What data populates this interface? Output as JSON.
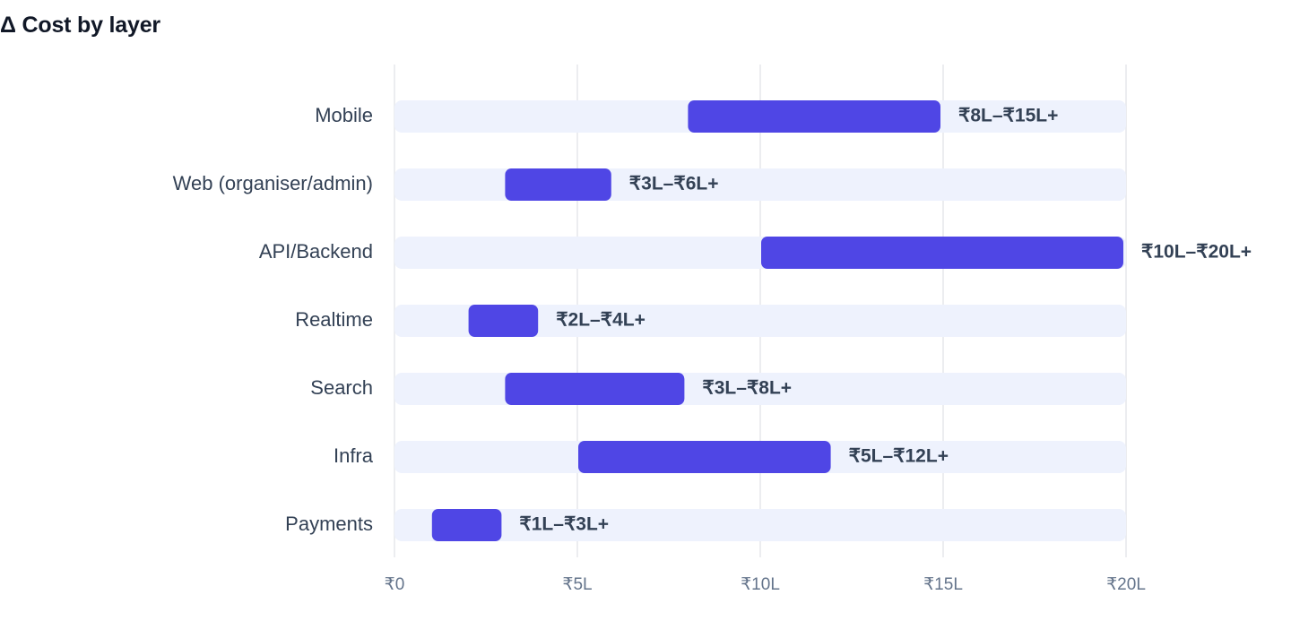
{
  "title": "Δ Cost by layer",
  "chart_data": {
    "type": "bar",
    "orientation": "horizontal",
    "subtype": "range",
    "title": "Δ Cost by layer",
    "categories": [
      "Mobile",
      "Web (organiser/admin)",
      "API/Backend",
      "Realtime",
      "Search",
      "Infra",
      "Payments"
    ],
    "ranges": [
      [
        8,
        15
      ],
      [
        3,
        6
      ],
      [
        10,
        20
      ],
      [
        2,
        4
      ],
      [
        3,
        8
      ],
      [
        5,
        12
      ],
      [
        1,
        3
      ]
    ],
    "range_labels": [
      "₹8L–₹15L+",
      "₹3L–₹6L+",
      "₹10L–₹20L+",
      "₹2L–₹4L+",
      "₹3L–₹8L+",
      "₹5L–₹12L+",
      "₹1L–₹3L+"
    ],
    "xlim": [
      0,
      20
    ],
    "xticks": [
      0,
      5,
      10,
      15,
      20
    ],
    "xtick_labels": [
      "₹0",
      "₹5L",
      "₹10L",
      "₹15L",
      "₹20L"
    ],
    "xlabel": "",
    "ylabel": "",
    "grid": "vertical",
    "legend": "none",
    "colors": {
      "bar": "#4f46e5",
      "track": "#eef2fd",
      "grid": "#e5e7eb",
      "text": "#334155",
      "tick": "#64748b"
    }
  }
}
